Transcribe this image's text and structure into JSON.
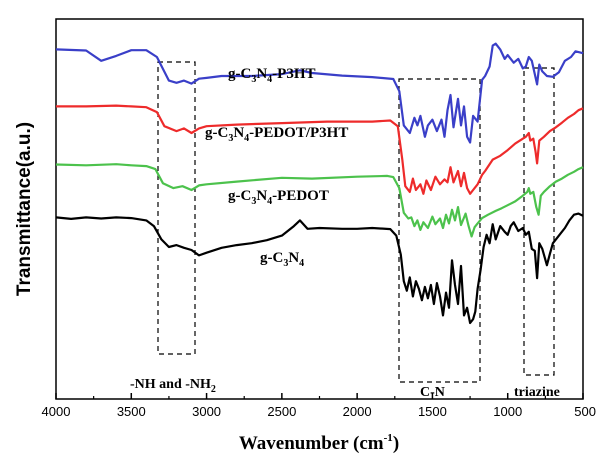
{
  "chart_data": {
    "type": "line",
    "xlabel": "Wavenumber (cm",
    "xlabel_sup": "-1",
    "xlabel_close": ")",
    "ylabel": "Transmittance(a.u.)",
    "xlim": [
      4000,
      500
    ],
    "x_reversed": true,
    "x_ticks": [
      "4000",
      "3500",
      "3000",
      "2500",
      "2000",
      "1500",
      "1000",
      "500"
    ],
    "y_ticks_shown": false,
    "grid": false,
    "series": [
      {
        "name_parts": [
          [
            "g-C",
            ""
          ],
          [
            "3",
            "sub"
          ],
          [
            "N",
            ""
          ],
          [
            "4",
            "sub"
          ],
          [
            "-P3HT",
            ""
          ]
        ],
        "color": "#3a3fc8",
        "points": [
          [
            4000,
            0.92
          ],
          [
            3800,
            0.917
          ],
          [
            3700,
            0.89
          ],
          [
            3600,
            0.903
          ],
          [
            3500,
            0.918
          ],
          [
            3400,
            0.918
          ],
          [
            3330,
            0.9
          ],
          [
            3250,
            0.838
          ],
          [
            3200,
            0.832
          ],
          [
            3150,
            0.838
          ],
          [
            3100,
            0.83
          ],
          [
            3050,
            0.843
          ],
          [
            3000,
            0.845
          ],
          [
            2900,
            0.85
          ],
          [
            2700,
            0.85
          ],
          [
            2500,
            0.855
          ],
          [
            2380,
            0.865
          ],
          [
            2300,
            0.858
          ],
          [
            2100,
            0.851
          ],
          [
            1900,
            0.847
          ],
          [
            1760,
            0.842
          ],
          [
            1720,
            0.81
          ],
          [
            1690,
            0.72
          ],
          [
            1650,
            0.7
          ],
          [
            1620,
            0.74
          ],
          [
            1600,
            0.72
          ],
          [
            1580,
            0.745
          ],
          [
            1550,
            0.69
          ],
          [
            1530,
            0.72
          ],
          [
            1500,
            0.735
          ],
          [
            1470,
            0.705
          ],
          [
            1440,
            0.735
          ],
          [
            1420,
            0.69
          ],
          [
            1400,
            0.76
          ],
          [
            1380,
            0.8
          ],
          [
            1360,
            0.715
          ],
          [
            1330,
            0.79
          ],
          [
            1310,
            0.72
          ],
          [
            1290,
            0.77
          ],
          [
            1270,
            0.69
          ],
          [
            1250,
            0.675
          ],
          [
            1230,
            0.745
          ],
          [
            1200,
            0.73
          ],
          [
            1170,
            0.84
          ],
          [
            1150,
            0.85
          ],
          [
            1120,
            0.875
          ],
          [
            1100,
            0.93
          ],
          [
            1080,
            0.935
          ],
          [
            1050,
            0.92
          ],
          [
            1020,
            0.895
          ],
          [
            1000,
            0.905
          ],
          [
            960,
            0.885
          ],
          [
            930,
            0.895
          ],
          [
            900,
            0.87
          ],
          [
            880,
            0.875
          ],
          [
            860,
            0.9
          ],
          [
            840,
            0.89
          ],
          [
            820,
            0.855
          ],
          [
            805,
            0.828
          ],
          [
            790,
            0.88
          ],
          [
            770,
            0.862
          ],
          [
            740,
            0.85
          ],
          [
            700,
            0.848
          ],
          [
            660,
            0.86
          ],
          [
            620,
            0.89
          ],
          [
            580,
            0.9
          ],
          [
            550,
            0.915
          ],
          [
            520,
            0.912
          ],
          [
            500,
            0.91
          ]
        ]
      },
      {
        "name_parts": [
          [
            "g-C",
            ""
          ],
          [
            "3",
            "sub"
          ],
          [
            "N",
            ""
          ],
          [
            "4",
            "sub"
          ],
          [
            "-PEDOT/P3HT",
            ""
          ]
        ],
        "color": "#ee2b2b",
        "points": [
          [
            4000,
            0.77
          ],
          [
            3800,
            0.77
          ],
          [
            3600,
            0.772
          ],
          [
            3500,
            0.77
          ],
          [
            3400,
            0.768
          ],
          [
            3330,
            0.755
          ],
          [
            3280,
            0.718
          ],
          [
            3200,
            0.705
          ],
          [
            3150,
            0.712
          ],
          [
            3100,
            0.7
          ],
          [
            3050,
            0.712
          ],
          [
            3000,
            0.718
          ],
          [
            2800,
            0.722
          ],
          [
            2500,
            0.726
          ],
          [
            2200,
            0.73
          ],
          [
            1900,
            0.73
          ],
          [
            1780,
            0.733
          ],
          [
            1730,
            0.718
          ],
          [
            1700,
            0.63
          ],
          [
            1680,
            0.56
          ],
          [
            1650,
            0.545
          ],
          [
            1630,
            0.58
          ],
          [
            1610,
            0.55
          ],
          [
            1580,
            0.565
          ],
          [
            1560,
            0.54
          ],
          [
            1540,
            0.575
          ],
          [
            1510,
            0.55
          ],
          [
            1480,
            0.585
          ],
          [
            1450,
            0.565
          ],
          [
            1420,
            0.578
          ],
          [
            1400,
            0.57
          ],
          [
            1380,
            0.61
          ],
          [
            1360,
            0.57
          ],
          [
            1330,
            0.6
          ],
          [
            1310,
            0.56
          ],
          [
            1290,
            0.595
          ],
          [
            1270,
            0.555
          ],
          [
            1250,
            0.54
          ],
          [
            1230,
            0.55
          ],
          [
            1200,
            0.565
          ],
          [
            1170,
            0.59
          ],
          [
            1150,
            0.6
          ],
          [
            1100,
            0.63
          ],
          [
            1050,
            0.64
          ],
          [
            1000,
            0.655
          ],
          [
            950,
            0.672
          ],
          [
            900,
            0.685
          ],
          [
            880,
            0.69
          ],
          [
            860,
            0.7
          ],
          [
            850,
            0.68
          ],
          [
            830,
            0.685
          ],
          [
            815,
            0.65
          ],
          [
            805,
            0.62
          ],
          [
            790,
            0.68
          ],
          [
            760,
            0.69
          ],
          [
            720,
            0.705
          ],
          [
            680,
            0.715
          ],
          [
            640,
            0.727
          ],
          [
            600,
            0.74
          ],
          [
            560,
            0.75
          ],
          [
            530,
            0.76
          ],
          [
            500,
            0.765
          ]
        ]
      },
      {
        "name_parts": [
          [
            "g-C",
            ""
          ],
          [
            "3",
            "sub"
          ],
          [
            "N",
            ""
          ],
          [
            "4",
            "sub"
          ],
          [
            "-PEDOT",
            ""
          ]
        ],
        "color": "#4cc24c",
        "points": [
          [
            4000,
            0.617
          ],
          [
            3800,
            0.615
          ],
          [
            3600,
            0.618
          ],
          [
            3500,
            0.615
          ],
          [
            3400,
            0.613
          ],
          [
            3340,
            0.605
          ],
          [
            3290,
            0.568
          ],
          [
            3220,
            0.555
          ],
          [
            3160,
            0.56
          ],
          [
            3100,
            0.55
          ],
          [
            3050,
            0.562
          ],
          [
            3000,
            0.565
          ],
          [
            2800,
            0.572
          ],
          [
            2500,
            0.582
          ],
          [
            2300,
            0.58
          ],
          [
            2000,
            0.585
          ],
          [
            1800,
            0.587
          ],
          [
            1760,
            0.584
          ],
          [
            1720,
            0.555
          ],
          [
            1690,
            0.49
          ],
          [
            1660,
            0.475
          ],
          [
            1640,
            0.478
          ],
          [
            1620,
            0.455
          ],
          [
            1600,
            0.47
          ],
          [
            1580,
            0.445
          ],
          [
            1560,
            0.465
          ],
          [
            1530,
            0.45
          ],
          [
            1500,
            0.48
          ],
          [
            1480,
            0.46
          ],
          [
            1450,
            0.475
          ],
          [
            1430,
            0.45
          ],
          [
            1410,
            0.485
          ],
          [
            1390,
            0.462
          ],
          [
            1370,
            0.498
          ],
          [
            1350,
            0.47
          ],
          [
            1330,
            0.505
          ],
          [
            1310,
            0.458
          ],
          [
            1280,
            0.488
          ],
          [
            1260,
            0.455
          ],
          [
            1240,
            0.428
          ],
          [
            1220,
            0.452
          ],
          [
            1200,
            0.462
          ],
          [
            1170,
            0.476
          ],
          [
            1130,
            0.485
          ],
          [
            1080,
            0.495
          ],
          [
            1040,
            0.502
          ],
          [
            1000,
            0.51
          ],
          [
            950,
            0.52
          ],
          [
            900,
            0.535
          ],
          [
            870,
            0.545
          ],
          [
            860,
            0.555
          ],
          [
            850,
            0.54
          ],
          [
            830,
            0.545
          ],
          [
            810,
            0.505
          ],
          [
            795,
            0.485
          ],
          [
            780,
            0.535
          ],
          [
            760,
            0.545
          ],
          [
            720,
            0.56
          ],
          [
            680,
            0.572
          ],
          [
            640,
            0.58
          ],
          [
            600,
            0.59
          ],
          [
            560,
            0.598
          ],
          [
            530,
            0.605
          ],
          [
            500,
            0.61
          ]
        ]
      },
      {
        "name_parts": [
          [
            "g-C",
            ""
          ],
          [
            "3",
            "sub"
          ],
          [
            "N",
            ""
          ],
          [
            "4",
            "sub"
          ]
        ],
        "color": "#000000",
        "points": [
          [
            4000,
            0.478
          ],
          [
            3900,
            0.474
          ],
          [
            3800,
            0.478
          ],
          [
            3700,
            0.475
          ],
          [
            3600,
            0.478
          ],
          [
            3500,
            0.476
          ],
          [
            3400,
            0.47
          ],
          [
            3350,
            0.455
          ],
          [
            3300,
            0.42
          ],
          [
            3250,
            0.4
          ],
          [
            3200,
            0.405
          ],
          [
            3150,
            0.398
          ],
          [
            3100,
            0.392
          ],
          [
            3050,
            0.378
          ],
          [
            3000,
            0.385
          ],
          [
            2900,
            0.398
          ],
          [
            2800,
            0.405
          ],
          [
            2700,
            0.41
          ],
          [
            2600,
            0.418
          ],
          [
            2500,
            0.43
          ],
          [
            2420,
            0.455
          ],
          [
            2380,
            0.47
          ],
          [
            2330,
            0.448
          ],
          [
            2250,
            0.45
          ],
          [
            2100,
            0.448
          ],
          [
            2000,
            0.448
          ],
          [
            1900,
            0.45
          ],
          [
            1780,
            0.447
          ],
          [
            1740,
            0.43
          ],
          [
            1710,
            0.38
          ],
          [
            1690,
            0.31
          ],
          [
            1670,
            0.285
          ],
          [
            1650,
            0.32
          ],
          [
            1630,
            0.27
          ],
          [
            1610,
            0.31
          ],
          [
            1590,
            0.29
          ],
          [
            1570,
            0.26
          ],
          [
            1550,
            0.295
          ],
          [
            1530,
            0.265
          ],
          [
            1510,
            0.3
          ],
          [
            1490,
            0.25
          ],
          [
            1470,
            0.305
          ],
          [
            1450,
            0.27
          ],
          [
            1430,
            0.22
          ],
          [
            1410,
            0.28
          ],
          [
            1390,
            0.24
          ],
          [
            1370,
            0.365
          ],
          [
            1350,
            0.3
          ],
          [
            1330,
            0.25
          ],
          [
            1310,
            0.35
          ],
          [
            1290,
            0.22
          ],
          [
            1270,
            0.24
          ],
          [
            1250,
            0.2
          ],
          [
            1230,
            0.21
          ],
          [
            1215,
            0.23
          ],
          [
            1200,
            0.29
          ],
          [
            1180,
            0.34
          ],
          [
            1160,
            0.4
          ],
          [
            1140,
            0.432
          ],
          [
            1120,
            0.41
          ],
          [
            1100,
            0.46
          ],
          [
            1080,
            0.42
          ],
          [
            1050,
            0.455
          ],
          [
            1020,
            0.44
          ],
          [
            1000,
            0.432
          ],
          [
            980,
            0.455
          ],
          [
            960,
            0.465
          ],
          [
            930,
            0.442
          ],
          [
            900,
            0.45
          ],
          [
            880,
            0.432
          ],
          [
            860,
            0.44
          ],
          [
            840,
            0.395
          ],
          [
            820,
            0.39
          ],
          [
            805,
            0.318
          ],
          [
            790,
            0.41
          ],
          [
            770,
            0.395
          ],
          [
            740,
            0.352
          ],
          [
            720,
            0.382
          ],
          [
            700,
            0.41
          ],
          [
            680,
            0.42
          ],
          [
            650,
            0.435
          ],
          [
            620,
            0.45
          ],
          [
            590,
            0.47
          ],
          [
            560,
            0.485
          ],
          [
            530,
            0.488
          ],
          [
            500,
            0.482
          ]
        ]
      }
    ],
    "annotations": {
      "nh_label": "-NH and -NH",
      "nh_sub": "2",
      "cn_label": "C-N",
      "triazine_label": "triazine"
    }
  }
}
